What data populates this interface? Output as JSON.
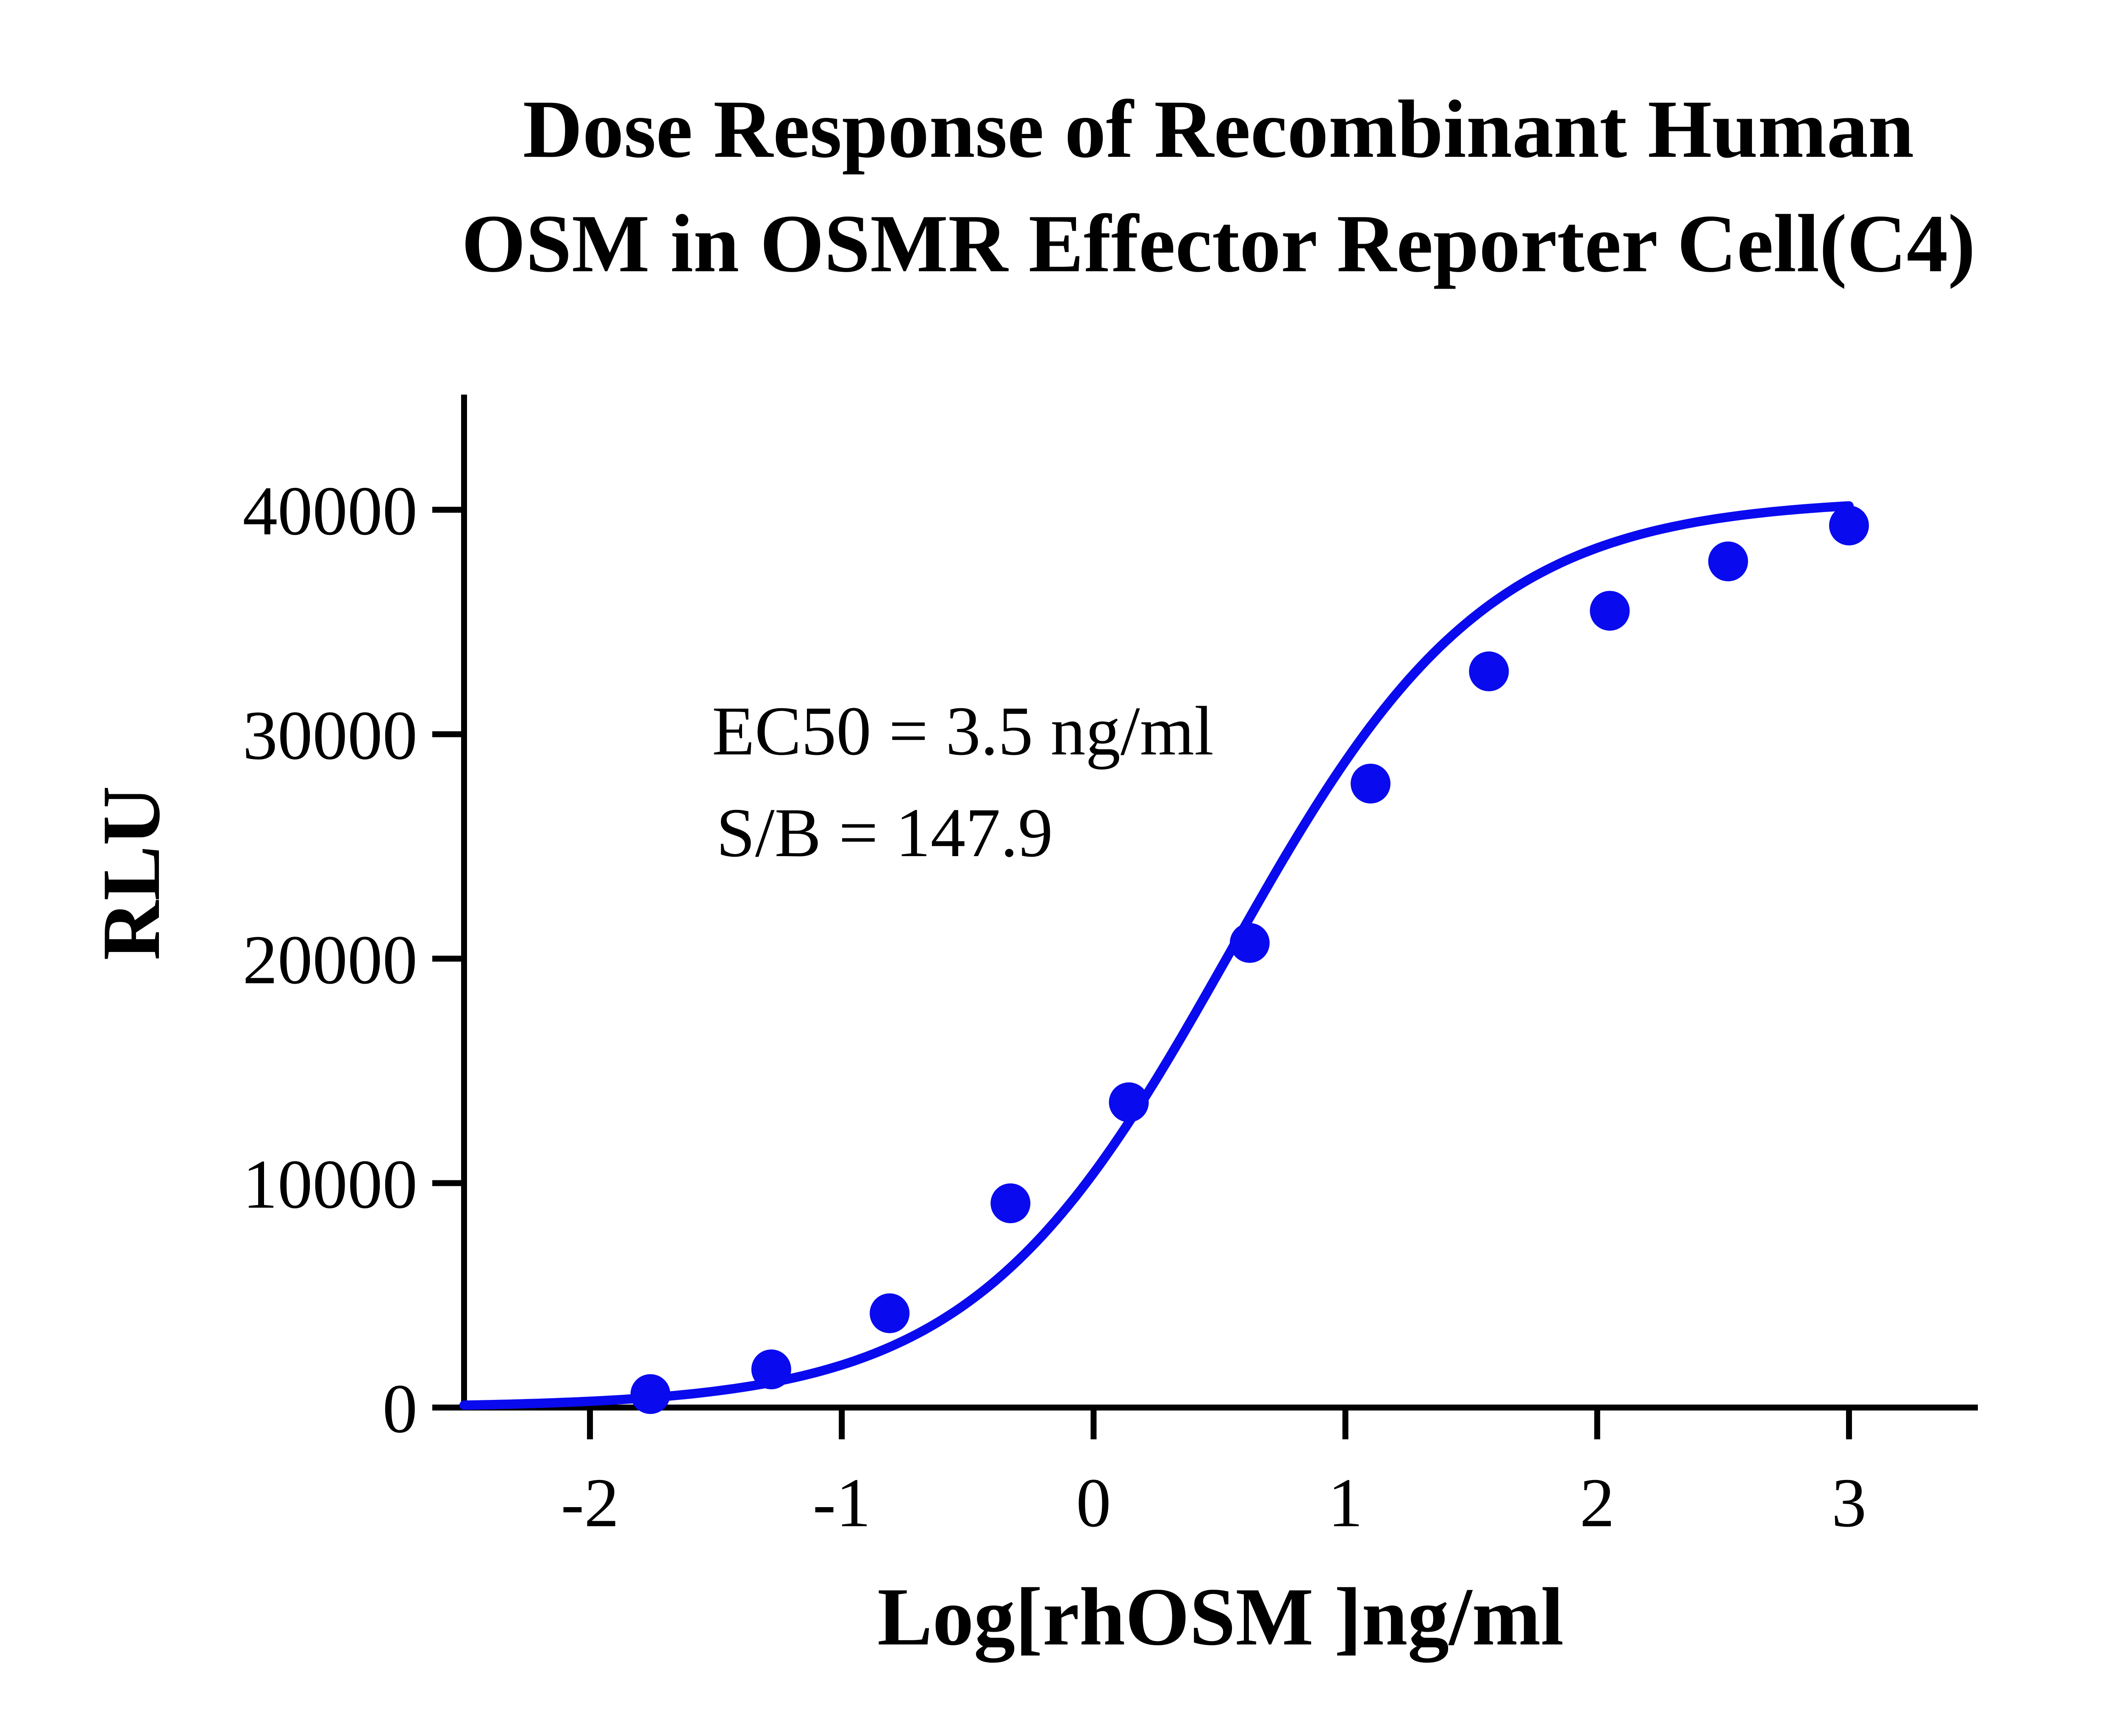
{
  "chart_data": {
    "type": "scatter",
    "title": "Dose Response of Recombinant Human",
    "subtitle": "OSM in OSMR Effector Reporter Cell(C4)",
    "xlabel": "Log[rhOSM ]ng/ml",
    "ylabel": "RLU",
    "xlim": [
      -2.5,
      3.5
    ],
    "ylim": [
      0,
      45000
    ],
    "x_ticks": [
      -2,
      -1,
      0,
      1,
      2,
      3
    ],
    "x_tick_labels": [
      "-2",
      "-1",
      "0",
      "1",
      "2",
      "3"
    ],
    "y_ticks": [
      0,
      10000,
      20000,
      30000,
      40000
    ],
    "y_tick_labels": [
      "0",
      "10000",
      "20000",
      "30000",
      "40000"
    ],
    "grid": false,
    "series": [
      {
        "points": [
          {
            "x": -1.76,
            "y": 600
          },
          {
            "x": -1.28,
            "y": 1700
          },
          {
            "x": -0.81,
            "y": 4200
          },
          {
            "x": -0.33,
            "y": 9100
          },
          {
            "x": 0.14,
            "y": 13600
          },
          {
            "x": 0.62,
            "y": 20700
          },
          {
            "x": 1.1,
            "y": 27800
          },
          {
            "x": 1.57,
            "y": 32800
          },
          {
            "x": 2.05,
            "y": 35500
          },
          {
            "x": 2.52,
            "y": 37700
          },
          {
            "x": 3.0,
            "y": 39300
          }
        ],
        "color": "#0a0aef"
      }
    ],
    "fit": {
      "model": "four-parameter logistic",
      "bottom": 0,
      "top": 40500,
      "log_ec50": 0.54,
      "hill_slope": 0.85,
      "x_range": [
        -2.5,
        3.0
      ],
      "color": "#0a0aef"
    },
    "annotations": [
      "EC50 = 3.5 ng/ml",
      "S/B = 147.9"
    ]
  }
}
